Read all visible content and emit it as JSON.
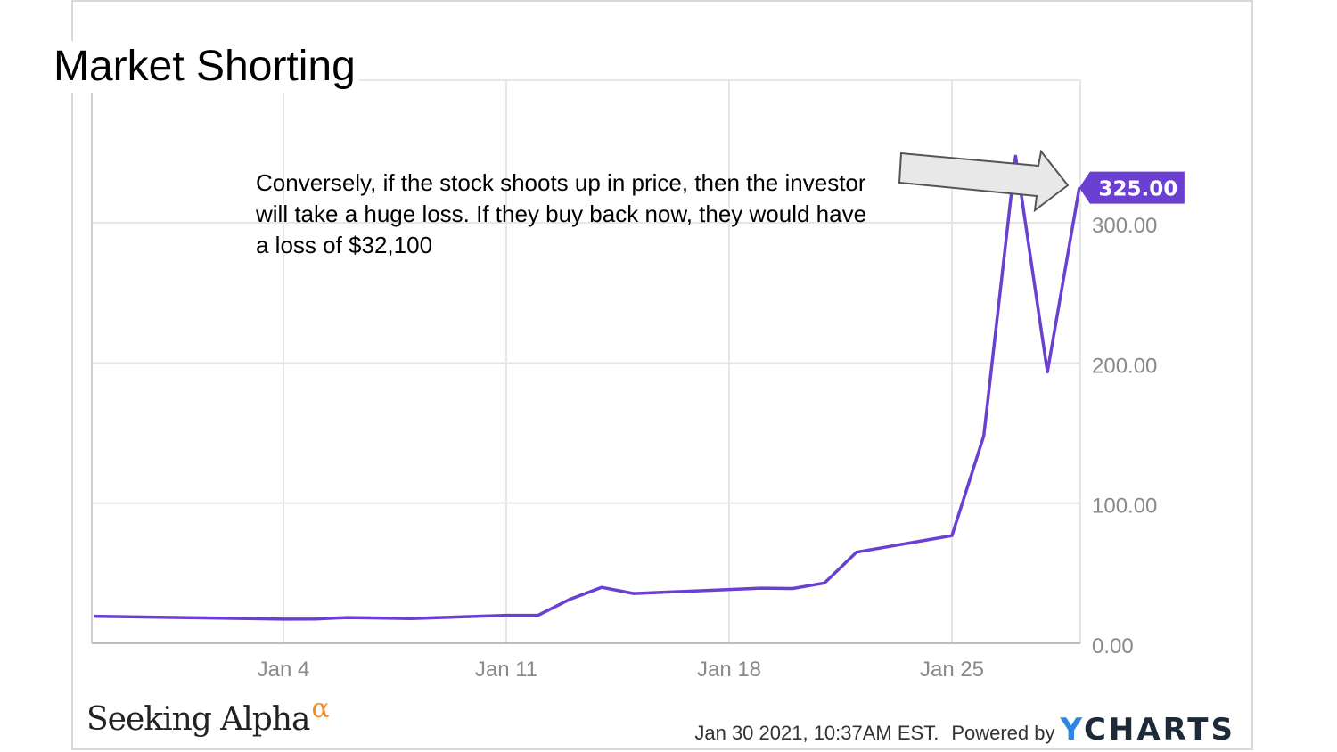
{
  "slide": {
    "title": "Market Shorting",
    "callout": "Conversely, if the stock shoots up in price, then the investor will take a huge loss. If they buy back now, they would have a loss of $32,100"
  },
  "footer": {
    "brand": "Seeking Alpha",
    "brand_mark": "α",
    "timestamp": "Jan 30 2021, 10:37AM EST.",
    "powered_by": "Powered by",
    "provider_mark": "Y",
    "provider_rest": "CHARTS"
  },
  "colors": {
    "line": "#6a3fd1",
    "badge": "#6a3fd1",
    "grid": "#e6e6e6",
    "axis_text": "#8a8a8a",
    "arrow_fill": "#e8e8e8",
    "arrow_stroke": "#555555",
    "brand_alpha": "#f28c28",
    "ycharts_y": "#2e86e0"
  },
  "chart_data": {
    "type": "line",
    "title": "",
    "xlabel": "",
    "ylabel": "",
    "x_ticks": [
      "Jan 4",
      "Jan 11",
      "Jan 18",
      "Jan 25"
    ],
    "y_ticks": [
      "0.00",
      "100.00",
      "200.00",
      "300.00"
    ],
    "ylim": [
      0,
      400
    ],
    "grid": true,
    "last_value_label": "325.00",
    "series": [
      {
        "x": [
          "2020-12-28",
          "2021-01-04",
          "2021-01-05",
          "2021-01-06",
          "2021-01-07",
          "2021-01-08",
          "2021-01-11",
          "2021-01-12",
          "2021-01-13",
          "2021-01-14",
          "2021-01-15",
          "2021-01-19",
          "2021-01-20",
          "2021-01-21",
          "2021-01-22",
          "2021-01-25",
          "2021-01-26",
          "2021-01-27",
          "2021-01-28",
          "2021-01-29"
        ],
        "values": [
          19.3,
          17.25,
          17.37,
          18.36,
          18.08,
          17.69,
          19.94,
          19.95,
          31.4,
          39.91,
          35.5,
          39.36,
          39.12,
          43.03,
          65.01,
          76.79,
          147.98,
          347.51,
          193.6,
          325.0
        ]
      }
    ]
  }
}
